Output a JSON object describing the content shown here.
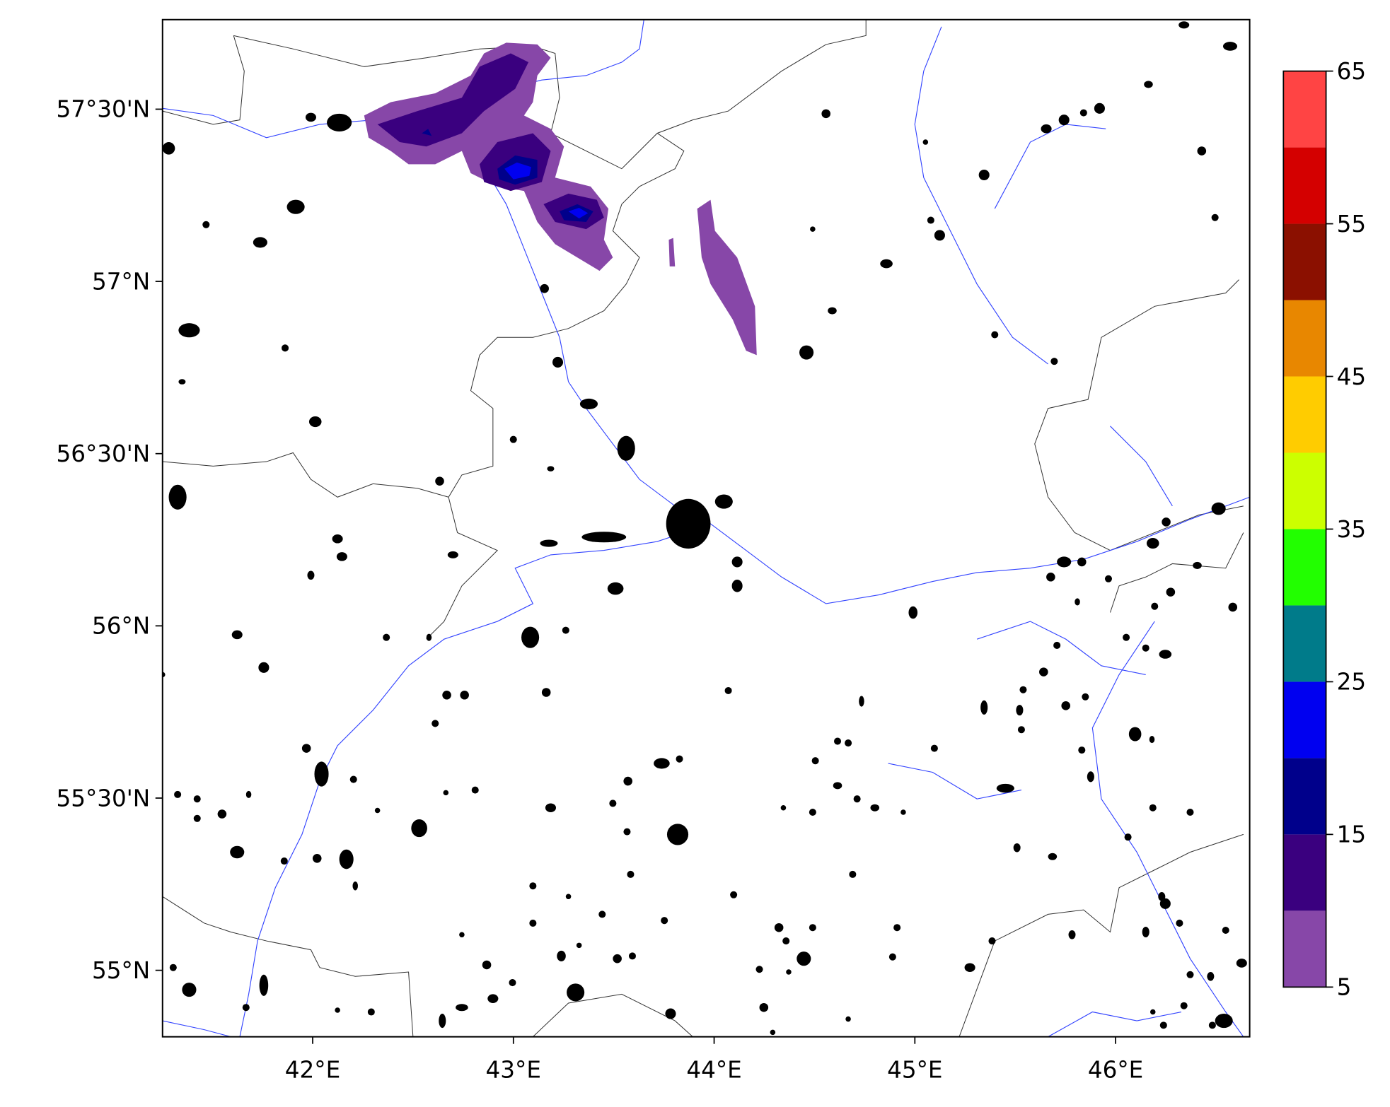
{
  "map": {
    "xlim": [
      41.252,
      46.668
    ],
    "ylim": [
      54.807,
      57.76
    ],
    "xticks": [
      {
        "value": 42,
        "label": "42°E"
      },
      {
        "value": 43,
        "label": "43°E"
      },
      {
        "value": 44,
        "label": "44°E"
      },
      {
        "value": 45,
        "label": "45°E"
      },
      {
        "value": 46,
        "label": "46°E"
      }
    ],
    "yticks": [
      {
        "value": 55,
        "label": "55°N"
      },
      {
        "value": 55.5,
        "label": "55°30'N"
      },
      {
        "value": 56,
        "label": "56°N"
      },
      {
        "value": 56.5,
        "label": "56°30'N"
      },
      {
        "value": 57,
        "label": "57°N"
      },
      {
        "value": 57.5,
        "label": "57°30'N"
      }
    ],
    "colorbar": {
      "levels": [
        5,
        10,
        15,
        20,
        25,
        30,
        35,
        40,
        45,
        50,
        55,
        60,
        65
      ],
      "colors": [
        "#8747a8",
        "#3a007f",
        "#00008b",
        "#0000f0",
        "#007b8a",
        "#22ff00",
        "#ccff00",
        "#ffcc00",
        "#e88700",
        "#8b1000",
        "#d40000",
        "#ff4444"
      ],
      "ticks": [
        5,
        15,
        25,
        35,
        45,
        55,
        65
      ]
    }
  }
}
